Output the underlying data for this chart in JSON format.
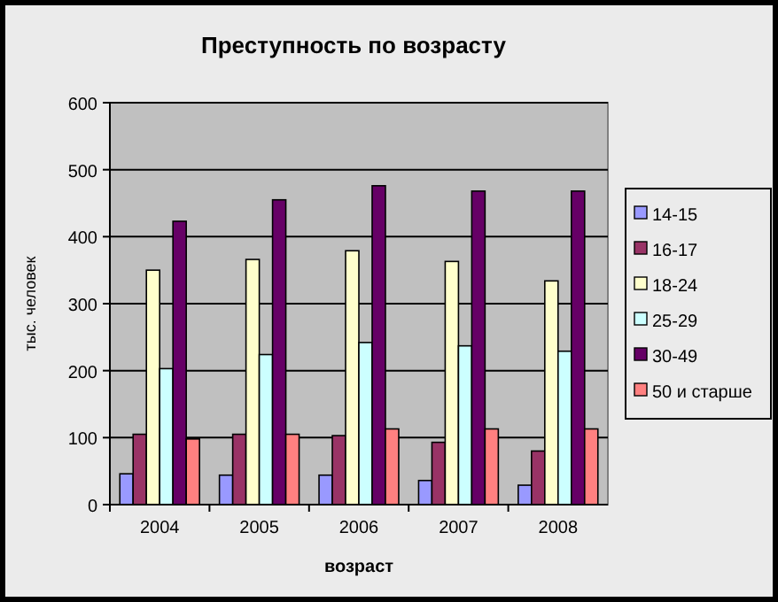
{
  "chart_data": {
    "type": "bar",
    "title": "Преступность по возрасту",
    "xlabel": "возраст",
    "ylabel": "тыс. человек",
    "categories": [
      "2004",
      "2005",
      "2006",
      "2007",
      "2008"
    ],
    "series": [
      {
        "name": "14-15",
        "color": "#9999ff",
        "values": [
          46,
          44,
          44,
          36,
          29
        ]
      },
      {
        "name": "16-17",
        "color": "#993366",
        "values": [
          105,
          105,
          103,
          93,
          80
        ]
      },
      {
        "name": "18-24",
        "color": "#ffffcc",
        "values": [
          350,
          366,
          379,
          363,
          334
        ]
      },
      {
        "name": "25-29",
        "color": "#ccffff",
        "values": [
          203,
          224,
          242,
          237,
          229
        ]
      },
      {
        "name": "30-49",
        "color": "#660066",
        "values": [
          423,
          455,
          476,
          468,
          468
        ]
      },
      {
        "name": "50 и старше",
        "color": "#ff8080",
        "values": [
          98,
          105,
          113,
          113,
          113
        ]
      }
    ],
    "ylim": [
      0,
      600
    ],
    "yticks": [
      0,
      100,
      200,
      300,
      400,
      500,
      600
    ],
    "grid": "y",
    "legend": "right"
  }
}
